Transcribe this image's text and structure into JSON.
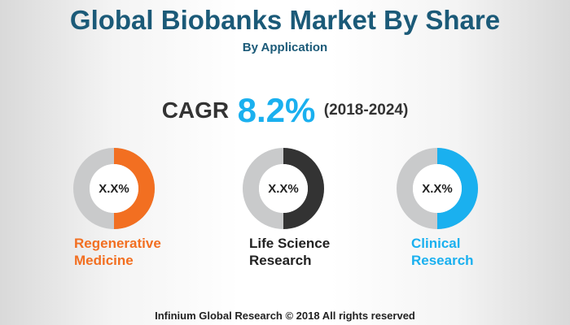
{
  "header": {
    "title": "Global Biobanks Market By Share",
    "subtitle": "By Application"
  },
  "cagr": {
    "label": "CAGR",
    "value": "8.2%",
    "period": "(2018-2024)"
  },
  "segments": [
    {
      "value_label": "X.X%",
      "name_lines": [
        "Regenerative",
        "Medicine"
      ]
    },
    {
      "value_label": "X.X%",
      "name_lines": [
        "Life Science",
        "Research"
      ]
    },
    {
      "value_label": "X.X%",
      "name_lines": [
        "Clinical",
        "Research"
      ]
    }
  ],
  "footer": "Infinium Global Research © 2018 All rights reserved"
}
